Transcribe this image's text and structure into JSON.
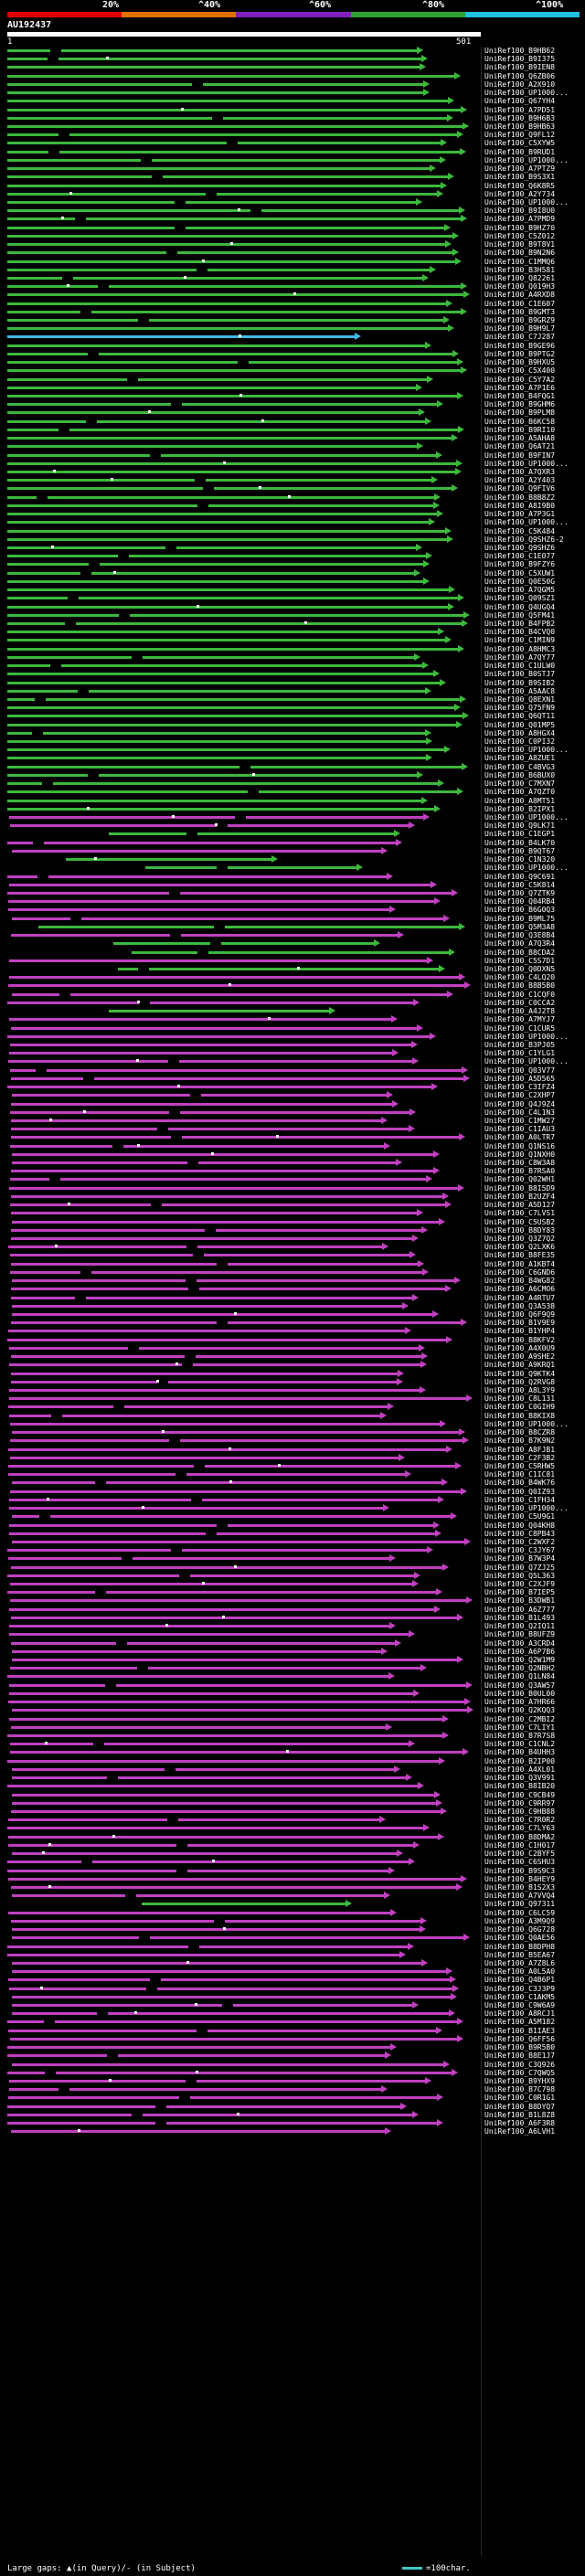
{
  "scale": {
    "labels": [
      "20%",
      "^40%",
      "^60%",
      "^80%",
      "^100%"
    ],
    "colors": [
      "#e00000",
      "#e07000",
      "#8020c0",
      "#30a030",
      "#20c0e0"
    ]
  },
  "query": {
    "id": "AU192437",
    "start": "1",
    "end": "501"
  },
  "legend": {
    "gaps_text": "Large gaps: ▲(in Query)/- (in Subject)",
    "scale_text": "=100char."
  },
  "hits": [
    {
      "label": "UniRef100_B9HB62",
      "color": "green"
    },
    {
      "label": "UniRef100_B9I375",
      "color": "green"
    },
    {
      "label": "UniRef100_B9IEN8",
      "color": "green"
    },
    {
      "label": "UniRef100_Q6ZB06",
      "color": "green"
    },
    {
      "label": "UniRef100_A2X910",
      "color": "green"
    },
    {
      "label": "UniRef100_UP1000...",
      "color": "green"
    },
    {
      "label": "UniRef100_Q67YH4",
      "color": "green"
    },
    {
      "label": "UniRef100_A7PD51",
      "color": "green"
    },
    {
      "label": "UniRef100_B9H6B3",
      "color": "green"
    },
    {
      "label": "UniRef100_B9HB63",
      "color": "green"
    },
    {
      "label": "UniRef100_Q9FL12",
      "color": "green"
    },
    {
      "label": "UniRef100_C5XYW5",
      "color": "green"
    },
    {
      "label": "UniRef100_B9RUD1",
      "color": "green"
    },
    {
      "label": "UniRef100_UP1000...",
      "color": "green"
    },
    {
      "label": "UniRef100_A7PTZ9",
      "color": "green"
    },
    {
      "label": "UniRef100_B9S3X1",
      "color": "green"
    },
    {
      "label": "UniRef100_Q6K8R5",
      "color": "green"
    },
    {
      "label": "UniRef100_A2Y734",
      "color": "green"
    },
    {
      "label": "UniRef100_UP1000...",
      "color": "green"
    },
    {
      "label": "UniRef100_B9I8U0",
      "color": "green"
    },
    {
      "label": "UniRef100_A7PMD9",
      "color": "green"
    },
    {
      "label": "UniRef100_B9HZ70",
      "color": "green"
    },
    {
      "label": "UniRef100_C5Z012",
      "color": "green"
    },
    {
      "label": "UniRef100_B9T8V1",
      "color": "green"
    },
    {
      "label": "UniRef100_B9N2N6",
      "color": "green"
    },
    {
      "label": "UniRef100_C1MMQ6",
      "color": "green"
    },
    {
      "label": "UniRef100_B3H581",
      "color": "green"
    },
    {
      "label": "UniRef100_Q82261",
      "color": "green"
    },
    {
      "label": "UniRef100_Q019H3",
      "color": "green"
    },
    {
      "label": "UniRef100_A4RXD8",
      "color": "green"
    },
    {
      "label": "UniRef100_C1E607",
      "color": "green"
    },
    {
      "label": "UniRef100_B9GMT3",
      "color": "green"
    },
    {
      "label": "UniRef100_B9GRZ9",
      "color": "green"
    },
    {
      "label": "UniRef100_B9H9L7",
      "color": "green"
    },
    {
      "label": "UniRef100_C7J287",
      "color": "cyan"
    },
    {
      "label": "UniRef100_B9GE96",
      "color": "green"
    },
    {
      "label": "UniRef100_B9PTG2",
      "color": "green"
    },
    {
      "label": "UniRef100_B9HXU5",
      "color": "green"
    },
    {
      "label": "UniRef100_C5X400",
      "color": "green"
    },
    {
      "label": "UniRef100_C5Y7A2",
      "color": "green"
    },
    {
      "label": "UniRef100_A7P1E6",
      "color": "green"
    },
    {
      "label": "UniRef100_B4FQG1",
      "color": "green"
    },
    {
      "label": "UniRef100_B9GHM6",
      "color": "green"
    },
    {
      "label": "UniRef100_B9PLM8",
      "color": "green"
    },
    {
      "label": "UniRef100_B6KC58",
      "color": "green"
    },
    {
      "label": "UniRef100_B9RI10",
      "color": "green"
    },
    {
      "label": "UniRef100_A5AHA8",
      "color": "green"
    },
    {
      "label": "UniRef100_Q6AT21",
      "color": "green"
    },
    {
      "label": "UniRef100_B9FIN7",
      "color": "green"
    },
    {
      "label": "UniRef100_UP1000...",
      "color": "green"
    },
    {
      "label": "UniRef100_A7QXR3",
      "color": "green"
    },
    {
      "label": "UniRef100_A2Y403",
      "color": "green"
    },
    {
      "label": "UniRef100_Q9FIV6",
      "color": "green"
    },
    {
      "label": "UniRef100_B8B8Z2",
      "color": "green"
    },
    {
      "label": "UniRef100_A8I9B0",
      "color": "green"
    },
    {
      "label": "UniRef100_A7P3G1",
      "color": "green"
    },
    {
      "label": "UniRef100_UP1000...",
      "color": "green"
    },
    {
      "label": "UniRef100_C5K484",
      "color": "green"
    },
    {
      "label": "UniRef100_Q9SHZ6-2",
      "color": "green"
    },
    {
      "label": "UniRef100_Q9SHZ6",
      "color": "green"
    },
    {
      "label": "UniRef100_C1E077",
      "color": "green"
    },
    {
      "label": "UniRef100_B9FZY6",
      "color": "green"
    },
    {
      "label": "UniRef100_C5XUW1",
      "color": "green"
    },
    {
      "label": "UniRef100_Q0E50G",
      "color": "green"
    },
    {
      "label": "UniRef100_A7QGM5",
      "color": "green"
    },
    {
      "label": "UniRef100_Q09SZ1",
      "color": "green"
    },
    {
      "label": "UniRef100_Q4UGQ4",
      "color": "green"
    },
    {
      "label": "UniRef100_Q5FM41",
      "color": "green"
    },
    {
      "label": "UniRef100_B4FPB2",
      "green": true,
      "color": "green"
    },
    {
      "label": "UniRef100_B4CVQ0",
      "color": "green"
    },
    {
      "label": "UniRef100_C1MIN9",
      "color": "green"
    },
    {
      "label": "UniRef100_A8HMC3",
      "color": "green"
    },
    {
      "label": "UniRef100_A7QY77",
      "color": "green"
    },
    {
      "label": "UniRef100_C1ULW0",
      "color": "green"
    },
    {
      "label": "UniRef100_B0STJ7",
      "color": "green"
    },
    {
      "label": "UniRef100_B9SIB2",
      "color": "green"
    },
    {
      "label": "UniRef100_A5AAC8",
      "color": "green"
    },
    {
      "label": "UniRef100_Q8EXN1",
      "color": "green"
    },
    {
      "label": "UniRef100_Q75FN9",
      "color": "green"
    },
    {
      "label": "UniRef100_Q6QT11",
      "color": "green"
    },
    {
      "label": "UniRef100_Q01MP5",
      "color": "green"
    },
    {
      "label": "UniRef100_A8HGX4",
      "color": "green"
    },
    {
      "label": "UniRef100_C0PI32",
      "color": "green"
    },
    {
      "label": "UniRef100_UP1000...",
      "color": "green"
    },
    {
      "label": "UniRef100_A8ZUE1",
      "color": "green"
    },
    {
      "label": "UniRef100_C4BVG3",
      "color": "green"
    },
    {
      "label": "UniRef100_B6BUX0",
      "color": "green"
    },
    {
      "label": "UniRef100_C7MXN7",
      "color": "green"
    },
    {
      "label": "UniRef100_A7QZT0",
      "color": "green"
    },
    {
      "label": "UniRef100_A8MT51",
      "color": "green"
    },
    {
      "label": "UniRef100_B2IPX1",
      "color": "green"
    },
    {
      "label": "UniRef100_UP1000...",
      "color": "magenta"
    },
    {
      "label": "UniRef100_Q9LK71",
      "color": "magenta"
    },
    {
      "label": "UniRef100_C1EGP1",
      "color": "green"
    },
    {
      "label": "UniRef100_B4LK70",
      "color": "magenta"
    },
    {
      "label": "UniRef100_B9QT67",
      "color": "magenta"
    },
    {
      "label": "UniRef100_C1N320",
      "color": "green"
    },
    {
      "label": "UniRef100_UP1000...",
      "color": "green"
    },
    {
      "label": "UniRef100_Q9C691",
      "color": "magenta"
    },
    {
      "label": "UniRef100_C5K814",
      "color": "magenta"
    },
    {
      "label": "UniRef100_Q7ZTK9",
      "color": "magenta"
    },
    {
      "label": "UniRef100_Q04RB4",
      "color": "magenta"
    },
    {
      "label": "UniRef100_B6G0Q3",
      "color": "magenta"
    },
    {
      "label": "UniRef100_B9ML75",
      "color": "magenta"
    },
    {
      "label": "UniRef100_Q5M3A8",
      "color": "green"
    },
    {
      "label": "UniRef100_Q3E8B4",
      "color": "magenta"
    },
    {
      "label": "UniRef100_A7Q3R4",
      "color": "green"
    },
    {
      "label": "UniRef100_B8CDA2",
      "color": "green"
    },
    {
      "label": "UniRef100_C5S7D1",
      "color": "magenta"
    },
    {
      "label": "UniRef100_Q0DXN5",
      "color": "green"
    },
    {
      "label": "UniRef100_C4LQ20",
      "color": "magenta"
    },
    {
      "label": "UniRef100_B8B5B0",
      "color": "magenta"
    },
    {
      "label": "UniRef100_C1CQF0",
      "color": "magenta"
    },
    {
      "label": "UniRef100_C0CCA2",
      "color": "magenta"
    },
    {
      "label": "UniRef100_A4J2T8",
      "color": "green"
    },
    {
      "label": "UniRef100_A7MYJ7",
      "color": "magenta"
    },
    {
      "label": "UniRef100_C1CUR5",
      "color": "magenta"
    },
    {
      "label": "UniRef100_UP1000...",
      "color": "magenta"
    },
    {
      "label": "UniRef100_B3PJ05",
      "color": "magenta"
    },
    {
      "label": "UniRef100_C1YLG1",
      "color": "magenta"
    },
    {
      "label": "UniRef100_UP1000...",
      "color": "magenta"
    },
    {
      "label": "UniRef100_Q03V77",
      "color": "magenta"
    },
    {
      "label": "UniRef100_A5D565",
      "color": "magenta"
    },
    {
      "label": "UniRef100_C3IFZ4",
      "color": "magenta"
    },
    {
      "label": "UniRef100_C2XHP7",
      "color": "magenta"
    },
    {
      "label": "UniRef100_Q4J9Z4",
      "color": "magenta"
    },
    {
      "label": "UniRef100_C4L1N3",
      "color": "magenta"
    },
    {
      "label": "UniRef100_C1MW27",
      "color": "magenta"
    },
    {
      "label": "UniRef100_C1IAU3",
      "color": "magenta"
    },
    {
      "label": "UniRef100_A0LTR7",
      "color": "magenta"
    },
    {
      "label": "UniRef100_Q1NS16",
      "color": "magenta"
    },
    {
      "label": "UniRef100_Q1NXH0",
      "color": "magenta"
    },
    {
      "label": "UniRef100_C8W3A8",
      "color": "magenta"
    },
    {
      "label": "UniRef100_B7RSA0",
      "color": "magenta"
    },
    {
      "label": "UniRef100_Q02WH1",
      "color": "magenta"
    },
    {
      "label": "UniRef100_B8I5D9",
      "color": "magenta"
    },
    {
      "label": "UniRef100_B2UZF4",
      "color": "magenta"
    },
    {
      "label": "UniRef100_A5D127",
      "color": "magenta"
    },
    {
      "label": "UniRef100_C7LVS1",
      "color": "magenta"
    },
    {
      "label": "UniRef100_C5USB2",
      "color": "magenta"
    },
    {
      "label": "UniRef100_B8DY83",
      "color": "magenta"
    },
    {
      "label": "UniRef100_Q3Z7Q2",
      "color": "magenta"
    },
    {
      "label": "UniRef100_Q2LXK6",
      "color": "magenta"
    },
    {
      "label": "UniRef100_B8FE35",
      "color": "magenta"
    },
    {
      "label": "UniRef100_A1KBT4",
      "color": "magenta"
    },
    {
      "label": "UniRef100_C6GND6",
      "color": "magenta"
    },
    {
      "label": "UniRef100_B4WG82",
      "color": "magenta"
    },
    {
      "label": "UniRef100_A6CMO6",
      "color": "magenta"
    },
    {
      "label": "UniRef100_A4RTU7",
      "color": "magenta"
    },
    {
      "label": "UniRef100_Q3A538",
      "color": "magenta"
    },
    {
      "label": "UniRef100_Q6F9Q9",
      "color": "magenta"
    },
    {
      "label": "UniRef100_B1V9E9",
      "color": "magenta"
    },
    {
      "label": "UniRef100_B1YHP4",
      "color": "magenta"
    },
    {
      "label": "UniRef100_B8KFV2",
      "color": "magenta"
    },
    {
      "label": "UniRef100_A4X0U9",
      "color": "magenta"
    },
    {
      "label": "UniRef100_A9SHE2",
      "color": "magenta"
    },
    {
      "label": "UniRef100_A9KRQ1",
      "color": "magenta"
    },
    {
      "label": "UniRef100_Q9KTK4",
      "color": "magenta"
    },
    {
      "label": "UniRef100_Q2RVG8",
      "color": "magenta"
    },
    {
      "label": "UniRef100_A8L3Y9",
      "color": "magenta"
    },
    {
      "label": "UniRef100_C8L131",
      "color": "magenta"
    },
    {
      "label": "UniRef100_C0GIH9",
      "color": "magenta"
    },
    {
      "label": "UniRef100_B8KIX8",
      "color": "magenta"
    },
    {
      "label": "UniRef100_UP1000...",
      "color": "magenta"
    },
    {
      "label": "UniRef100_B8CZR8",
      "color": "magenta"
    },
    {
      "label": "UniRef100_B7K9N2",
      "color": "magenta"
    },
    {
      "label": "UniRef100_A8FJB1",
      "color": "magenta"
    },
    {
      "label": "UniRef100_C2F3B2",
      "color": "magenta"
    },
    {
      "label": "UniRef100_C5RHW5",
      "color": "magenta"
    },
    {
      "label": "UniRef100_C1IC81",
      "color": "magenta"
    },
    {
      "label": "UniRef100_B4WK76",
      "color": "magenta"
    },
    {
      "label": "UniRef100_Q0IZ93",
      "color": "magenta"
    },
    {
      "label": "UniRef100_C1FH34",
      "color": "magenta"
    },
    {
      "label": "UniRef100_UP1000...",
      "color": "magenta"
    },
    {
      "label": "UniRef100_C5U9G1",
      "color": "magenta"
    },
    {
      "label": "UniRef100_Q04KH8",
      "color": "magenta"
    },
    {
      "label": "UniRef100_C8PB43",
      "color": "magenta"
    },
    {
      "label": "UniRef100_C2WXF2",
      "color": "magenta"
    },
    {
      "label": "UniRef100_C3JY67",
      "color": "magenta"
    },
    {
      "label": "UniRef100_B7W3P4",
      "color": "magenta"
    },
    {
      "label": "UniRef100_Q7ZJ25",
      "color": "magenta"
    },
    {
      "label": "UniRef100_Q5L363",
      "color": "magenta"
    },
    {
      "label": "UniRef100_C2XJF9",
      "color": "magenta"
    },
    {
      "label": "UniRef100_B7IEP5",
      "color": "magenta"
    },
    {
      "label": "UniRef100_B3DWB1",
      "color": "magenta"
    },
    {
      "label": "UniRef100_A6Z777",
      "color": "magenta"
    },
    {
      "label": "UniRef100_B1L493",
      "color": "magenta"
    },
    {
      "label": "UniRef100_Q2IQ11",
      "color": "magenta"
    },
    {
      "label": "UniRef100_B8UFZ9",
      "color": "magenta"
    },
    {
      "label": "UniRef100_A3CRD4",
      "color": "magenta"
    },
    {
      "label": "UniRef100_A6P7B6",
      "color": "magenta"
    },
    {
      "label": "UniRef100_Q2W1M9",
      "color": "magenta"
    },
    {
      "label": "UniRef100_Q2NBH2",
      "color": "magenta"
    },
    {
      "label": "UniRef100_Q1LN84",
      "color": "magenta"
    },
    {
      "label": "UniRef100_Q3AW57",
      "color": "magenta"
    },
    {
      "label": "UniRef100_B0UL00",
      "color": "magenta"
    },
    {
      "label": "UniRef100_A7HR66",
      "color": "magenta"
    },
    {
      "label": "UniRef100_Q2KQQ3",
      "color": "magenta"
    },
    {
      "label": "UniRef100_C2MBI2",
      "color": "magenta"
    },
    {
      "label": "UniRef100_C7LIY1",
      "color": "magenta"
    },
    {
      "label": "UniRef100_B7R7S8",
      "color": "magenta"
    },
    {
      "label": "UniRef100_C1CNL2",
      "color": "magenta"
    },
    {
      "label": "UniRef100_B4UHH3",
      "color": "magenta"
    },
    {
      "label": "UniRef100_B2IP00",
      "color": "magenta"
    },
    {
      "label": "UniRef100_A4XL01",
      "color": "magenta"
    },
    {
      "label": "UniRef100_Q3V991",
      "color": "magenta"
    },
    {
      "label": "UniRef100_B8IB20",
      "color": "magenta"
    },
    {
      "label": "UniRef100_C9CB49",
      "color": "magenta"
    },
    {
      "label": "UniRef100_C9RR97",
      "color": "magenta"
    },
    {
      "label": "UniRef100_C9HB88",
      "color": "magenta"
    },
    {
      "label": "UniRef100_C7R0R2",
      "color": "magenta"
    },
    {
      "label": "UniRef100_C7LY63",
      "color": "magenta"
    },
    {
      "label": "UniRef100_B8DMA2",
      "color": "magenta"
    },
    {
      "label": "UniRef100_C1H017",
      "color": "magenta"
    },
    {
      "label": "UniRef100_C2BYF5",
      "color": "magenta"
    },
    {
      "label": "UniRef100_C6SHU3",
      "color": "magenta"
    },
    {
      "label": "UniRef100_B9S9C3",
      "color": "magenta"
    },
    {
      "label": "UniRef100_B4HEY9",
      "color": "magenta"
    },
    {
      "label": "UniRef100_B1S2X3",
      "color": "magenta"
    },
    {
      "label": "UniRef100_A7VVQ4",
      "color": "magenta"
    },
    {
      "label": "UniRef100_Q97311",
      "color": "green"
    },
    {
      "label": "UniRef100_C6LC59",
      "color": "magenta"
    },
    {
      "label": "UniRef100_A3M9Q9",
      "color": "magenta"
    },
    {
      "label": "UniRef100_Q6G728",
      "color": "magenta"
    },
    {
      "label": "UniRef100_Q0AE56",
      "color": "magenta"
    },
    {
      "label": "UniRef100_B8DPH8",
      "color": "magenta"
    },
    {
      "label": "UniRef100_B5EA67",
      "color": "magenta"
    },
    {
      "label": "UniRef100_A7Z8L6",
      "color": "magenta"
    },
    {
      "label": "UniRef100_A0L5A0",
      "color": "magenta"
    },
    {
      "label": "UniRef100_Q4B6P1",
      "color": "magenta"
    },
    {
      "label": "UniRef100_C3J3P9",
      "color": "magenta"
    },
    {
      "label": "UniRef100_C1AKM5",
      "color": "magenta"
    },
    {
      "label": "UniRef100_C9W6A9",
      "color": "magenta"
    },
    {
      "label": "UniRef100_A8RCJ1",
      "color": "magenta"
    },
    {
      "label": "UniRef100_A5M182",
      "color": "magenta"
    },
    {
      "label": "UniRef100_B1IAE3",
      "color": "magenta"
    },
    {
      "label": "UniRef100_Q6FF56",
      "color": "magenta"
    },
    {
      "label": "UniRef100_B9R5B0",
      "color": "magenta"
    },
    {
      "label": "UniRef100_B8E1J7",
      "color": "magenta"
    },
    {
      "label": "UniRef100_C3Q926",
      "color": "magenta"
    },
    {
      "label": "UniRef100_C7QWQ5",
      "color": "magenta"
    },
    {
      "label": "UniRef100_B9YHX9",
      "color": "magenta"
    },
    {
      "label": "UniRef100_B7C798",
      "color": "magenta"
    },
    {
      "label": "UniRef100_C0R1G1",
      "color": "magenta"
    },
    {
      "label": "UniRef100_B8DYQ7",
      "color": "magenta"
    },
    {
      "label": "UniRef100_B1L8Z8",
      "color": "magenta"
    },
    {
      "label": "UniRef100_A6F3R8",
      "color": "magenta"
    },
    {
      "label": "UniRef100_A6LVH1",
      "color": "magenta"
    }
  ]
}
